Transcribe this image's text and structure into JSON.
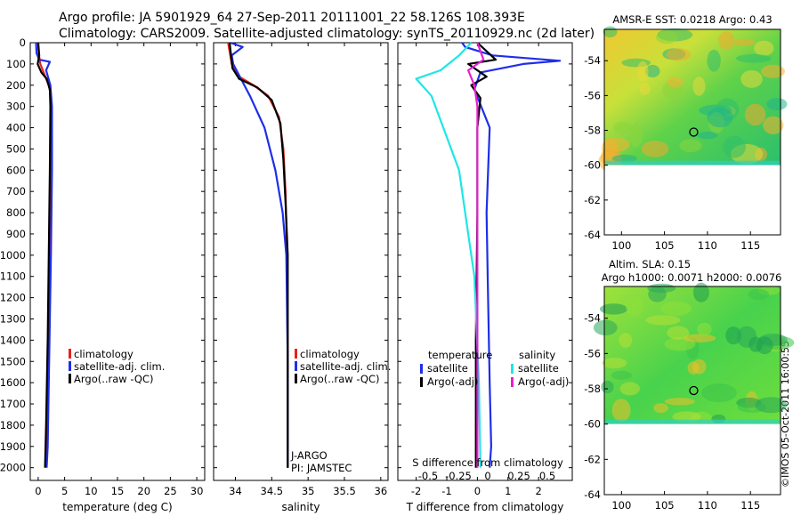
{
  "header": {
    "line1": "Argo profile: JA 5901929_64 27-Sep-2011 20111001_22 58.126S 108.393E",
    "line2": "Climatology: CARS2009. Satellite-adjusted climatology: synTS_20110929.nc (2d later)"
  },
  "stamp": "©IMOS 05-Oct-2011 16:00:55",
  "colors": {
    "climatology": "#e8221a",
    "satellite": "#1f2ee8",
    "argo": "#000000",
    "sal_sat": "#1fe6e6",
    "sal_argo": "#e61fd0"
  },
  "chart_data": [
    {
      "type": "line",
      "id": "temperature",
      "xlabel": "temperature (deg C)",
      "xlim": [
        -1.5,
        31.5
      ],
      "ylim": [
        0,
        2060
      ],
      "xticks": [
        0,
        5,
        10,
        15,
        20,
        25,
        30
      ],
      "yticks": [
        0,
        100,
        200,
        300,
        400,
        500,
        600,
        700,
        800,
        900,
        1000,
        1100,
        1200,
        1300,
        1400,
        1500,
        1600,
        1700,
        1800,
        1900,
        2000
      ],
      "legend": [
        "climatology",
        "satellite-adj. clim.",
        "Argo(..raw -QC)"
      ],
      "series": [
        {
          "name": "climatology",
          "color": "#e8221a",
          "x": [
            0.0,
            0.1,
            0.4,
            1.2,
            2.0,
            2.4,
            2.5,
            2.4,
            2.2,
            2.0,
            1.8,
            1.6,
            1.4
          ],
          "y": [
            0,
            50,
            100,
            150,
            200,
            250,
            400,
            800,
            1200,
            1500,
            1700,
            1900,
            2000
          ]
        },
        {
          "name": "satellite-adj. clim.",
          "color": "#1f2ee8",
          "x": [
            -0.4,
            -0.3,
            0.2,
            2.2,
            1.5,
            2.3,
            2.6,
            2.6,
            2.4,
            2.2,
            2.0,
            1.8,
            1.6
          ],
          "y": [
            0,
            50,
            80,
            90,
            130,
            200,
            300,
            600,
            1000,
            1300,
            1600,
            1900,
            2000
          ]
        },
        {
          "name": "Argo(..raw -QC)",
          "color": "#000000",
          "x": [
            0.0,
            0.2,
            -0.1,
            0.6,
            1.6,
            2.2,
            2.3,
            2.2,
            2.0,
            1.8,
            1.5,
            1.3
          ],
          "y": [
            0,
            60,
            100,
            140,
            170,
            220,
            300,
            600,
            1000,
            1400,
            1800,
            2000
          ]
        }
      ]
    },
    {
      "type": "line",
      "id": "salinity",
      "xlabel": "salinity",
      "xlim": [
        33.7,
        36.1
      ],
      "ylim": [
        0,
        2060
      ],
      "xticks": [
        34,
        34.5,
        35,
        35.5,
        36
      ],
      "legend": [
        "climatology",
        "satellite-adj. clim.",
        "Argo(..raw -QC)"
      ],
      "annotation": [
        "J-ARGO",
        "PI: JAMSTEC"
      ],
      "series": [
        {
          "name": "climatology",
          "color": "#e8221a",
          "x": [
            33.9,
            33.95,
            34.05,
            34.25,
            34.45,
            34.6,
            34.66,
            34.69,
            34.71,
            34.72,
            34.72
          ],
          "y": [
            0,
            100,
            160,
            200,
            250,
            350,
            500,
            700,
            1000,
            1500,
            2000
          ]
        },
        {
          "name": "satellite-adj. clim.",
          "color": "#1f2ee8",
          "x": [
            33.93,
            34.1,
            33.95,
            33.97,
            34.2,
            34.4,
            34.55,
            34.65,
            34.7,
            34.72,
            34.72
          ],
          "y": [
            0,
            20,
            60,
            100,
            250,
            400,
            600,
            800,
            1000,
            1500,
            2000
          ]
        },
        {
          "name": "Argo(..raw -QC)",
          "color": "#000000",
          "x": [
            33.92,
            33.96,
            34.05,
            34.3,
            34.5,
            34.62,
            34.66,
            34.69,
            34.72,
            34.72
          ],
          "y": [
            0,
            120,
            170,
            210,
            270,
            380,
            550,
            750,
            1000,
            2000
          ]
        }
      ]
    },
    {
      "type": "line",
      "id": "difference",
      "xlabel": "T difference from climatology",
      "xlabel_top": "S difference from climatology",
      "xlim": [
        -2.6,
        3.1
      ],
      "ylim": [
        0,
        2060
      ],
      "xticks": [
        -2,
        -1,
        0,
        1,
        2
      ],
      "xticks_s": [
        "-0.5",
        "-0.25",
        "0",
        "0.25",
        "0.5"
      ],
      "legend_groups": [
        {
          "title": "temperature",
          "entries": [
            "satellite",
            "Argo(-adj)"
          ]
        },
        {
          "title": "salinity",
          "entries": [
            "satellite",
            "Argo(-adj)"
          ]
        }
      ],
      "series": [
        {
          "name": "temperature satellite",
          "color": "#1f2ee8",
          "x": [
            -0.5,
            -0.4,
            0.5,
            2.7,
            1.5,
            0.1,
            -0.1,
            0.4,
            0.3,
            0.35,
            0.4,
            0.45,
            0.4
          ],
          "y": [
            0,
            20,
            60,
            85,
            100,
            140,
            220,
            400,
            800,
            1200,
            1600,
            1900,
            2000
          ]
        },
        {
          "name": "temperature Argo(-adj)",
          "color": "#000000",
          "x": [
            0.0,
            0.6,
            -0.3,
            0.3,
            -0.2,
            0.1,
            0.0,
            0.0,
            -0.05,
            -0.05
          ],
          "y": [
            0,
            80,
            100,
            160,
            200,
            260,
            400,
            800,
            1400,
            2000
          ]
        },
        {
          "name": "salinity satellite",
          "color": "#1fe6e6",
          "x": [
            -0.2,
            -0.6,
            -1.2,
            -2.0,
            -1.5,
            -0.6,
            -0.3,
            -0.1,
            0.05,
            0.1
          ],
          "y": [
            0,
            60,
            130,
            170,
            250,
            600,
            900,
            1100,
            1600,
            2000
          ]
        },
        {
          "name": "salinity Argo(-adj)",
          "color": "#e61fd0",
          "x": [
            0.0,
            0.2,
            -0.3,
            -0.1,
            0.0,
            0.0,
            0.0
          ],
          "y": [
            0,
            80,
            130,
            200,
            300,
            1000,
            2000
          ]
        }
      ]
    },
    {
      "type": "heatmap",
      "id": "sst-map",
      "title": "AMSR-E SST: 0.0218 Argo: 0.43",
      "xlim": [
        98,
        118.5
      ],
      "ylim": [
        -64,
        -52.2
      ],
      "xticks": [
        100,
        105,
        110,
        115
      ],
      "yticks": [
        -54,
        -56,
        -58,
        -60,
        -62,
        -64
      ],
      "marker": {
        "lon": 108.4,
        "lat": -58.1
      }
    },
    {
      "type": "heatmap",
      "id": "sla-map",
      "title": "Altim. SLA: 0.15",
      "subtitle": "Argo h1000: 0.0071 h2000: 0.0076",
      "xlim": [
        98,
        118.5
      ],
      "ylim": [
        -64,
        -52.2
      ],
      "xticks": [
        100,
        105,
        110,
        115
      ],
      "yticks": [
        -54,
        -56,
        -58,
        -60,
        -62,
        -64
      ],
      "marker": {
        "lon": 108.4,
        "lat": -58.1
      }
    }
  ]
}
